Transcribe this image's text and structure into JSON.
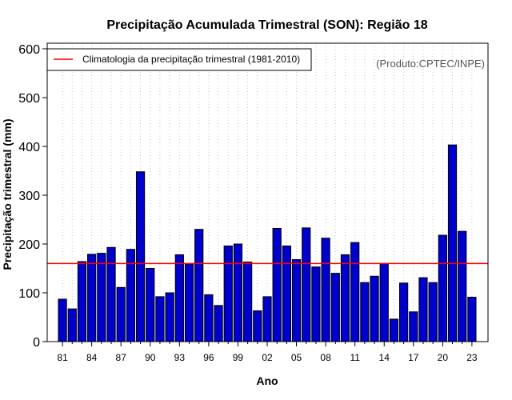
{
  "chart_data": {
    "type": "bar",
    "title": "Precipitação Acumulada Trimestral (SON): Região 18",
    "xlabel": "Ano",
    "ylabel": "Precipitação trimestral (mm)",
    "ylim": [
      0,
      600
    ],
    "yticks": [
      0,
      100,
      200,
      300,
      400,
      500,
      600
    ],
    "grid": true,
    "legend_position": "top-left",
    "source_note": "(Produto:CPTEC/INPE)",
    "categories": [
      "81",
      "82",
      "83",
      "84",
      "85",
      "86",
      "87",
      "88",
      "89",
      "90",
      "91",
      "92",
      "93",
      "94",
      "95",
      "96",
      "97",
      "98",
      "99",
      "00",
      "01",
      "02",
      "03",
      "04",
      "05",
      "06",
      "07",
      "08",
      "09",
      "10",
      "11",
      "12",
      "13",
      "14",
      "15",
      "16",
      "17",
      "18",
      "19",
      "20",
      "21",
      "22",
      "23"
    ],
    "xtick_labels": [
      "81",
      "84",
      "87",
      "90",
      "93",
      "96",
      "99",
      "02",
      "05",
      "08",
      "11",
      "14",
      "17",
      "20",
      "23"
    ],
    "series": [
      {
        "name": "Precipitação trimestral",
        "color": "#0000cc",
        "values": [
          87,
          67,
          164,
          179,
          181,
          193,
          111,
          189,
          348,
          150,
          92,
          100,
          178,
          159,
          230,
          96,
          74,
          196,
          200,
          163,
          63,
          92,
          232,
          196,
          168,
          233,
          153,
          212,
          140,
          178,
          203,
          121,
          134,
          160,
          46,
          120,
          61,
          131,
          121,
          218,
          403,
          226,
          91
        ]
      }
    ],
    "reference_line": {
      "label": "Climatologia da precipitação trimestral (1981-2010)",
      "value": 160,
      "color": "#ff0000"
    }
  }
}
